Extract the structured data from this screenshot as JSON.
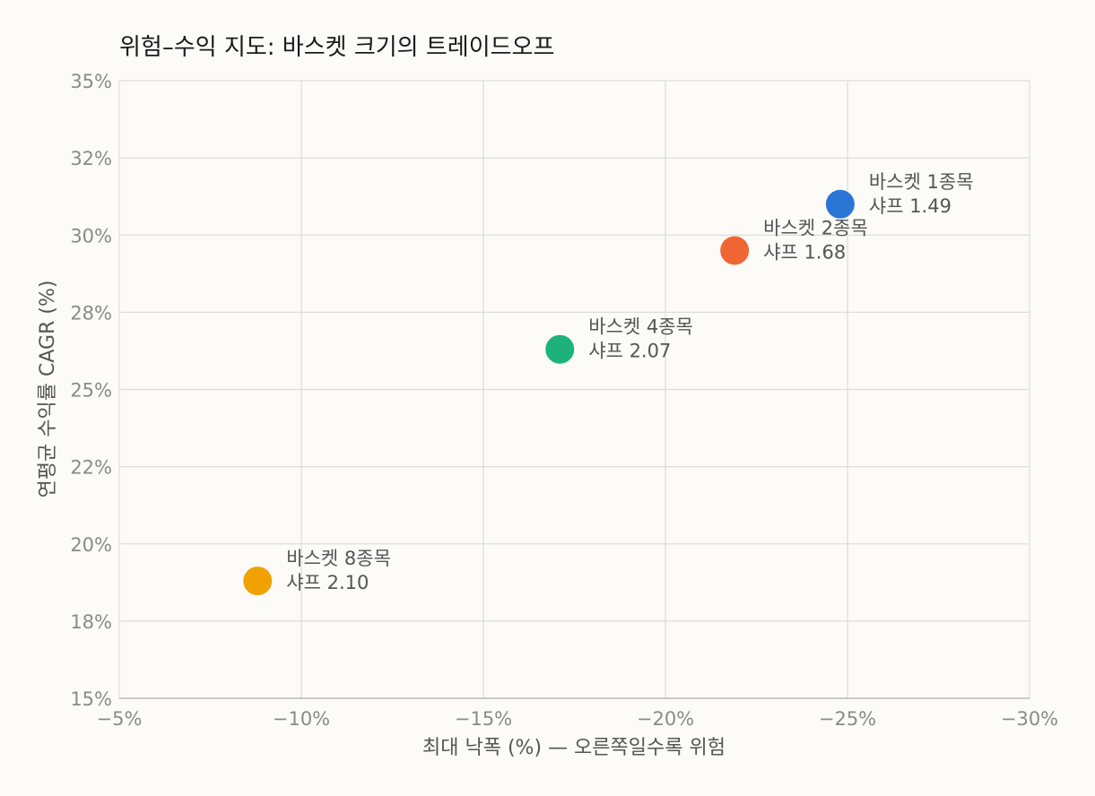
{
  "chart_data": {
    "type": "scatter",
    "title": "위험–수익 지도: 바스켓 크기의 트레이드오프",
    "xlabel": "최대 낙폭 (%) — 오른쪽일수록 위험",
    "ylabel": "연평균 수익률 CAGR (%)",
    "xlim": [
      -5,
      -30
    ],
    "ylim": [
      15,
      35
    ],
    "x_ticks": [
      -5,
      -10,
      -15,
      -20,
      -25,
      -30
    ],
    "x_tick_labels": [
      "−5%",
      "−10%",
      "−15%",
      "−20%",
      "−25%",
      "−30%"
    ],
    "y_ticks": [
      15,
      17.5,
      20,
      22.5,
      25,
      27.5,
      30,
      32.5,
      35
    ],
    "y_tick_labels": [
      "15%",
      "18%",
      "20%",
      "22%",
      "25%",
      "28%",
      "30%",
      "32%",
      "35%"
    ],
    "grid": true,
    "points": [
      {
        "label": "바스켓 1종목",
        "sharpe_label": "샤프 1.49",
        "x": -24.8,
        "y": 31.0,
        "color": "#2a76d6"
      },
      {
        "label": "바스켓 2종목",
        "sharpe_label": "샤프 1.68",
        "x": -21.9,
        "y": 29.5,
        "color": "#ef6633"
      },
      {
        "label": "바스켓 4종목",
        "sharpe_label": "샤프 2.07",
        "x": -17.1,
        "y": 26.3,
        "color": "#1db27a"
      },
      {
        "label": "바스켓 8종목",
        "sharpe_label": "샤프 2.10",
        "x": -8.8,
        "y": 18.8,
        "color": "#f0a202"
      }
    ]
  }
}
